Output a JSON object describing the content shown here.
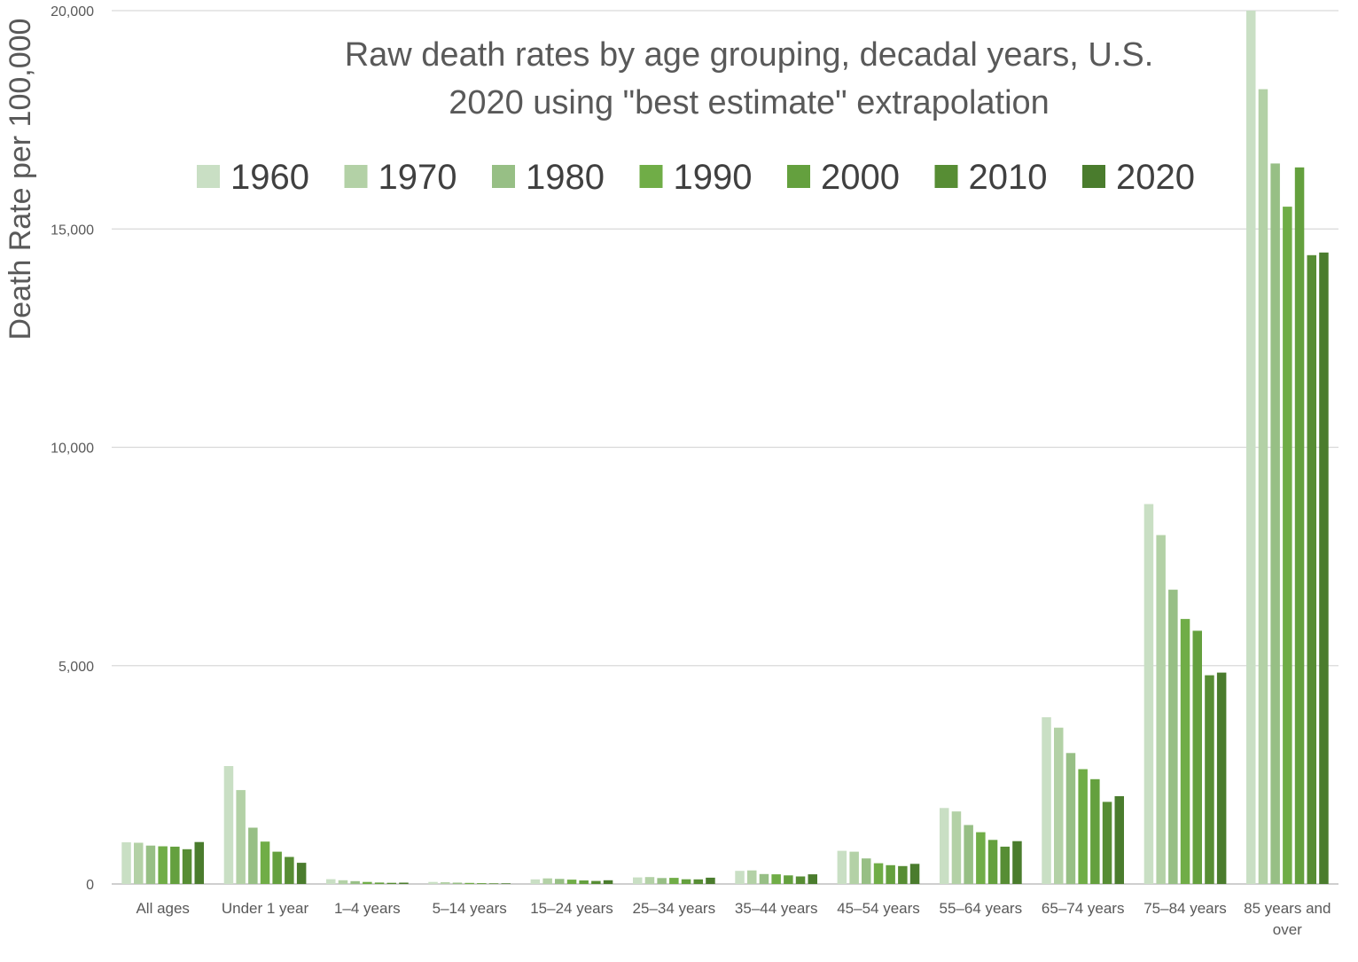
{
  "chart_data": {
    "type": "bar",
    "title_lines": [
      "Raw death rates by age grouping, decadal years, U.S.",
      "2020 using \"best estimate\" extrapolation"
    ],
    "ylabel": "Death Rate per 100,000",
    "xlabel": "",
    "ylim": [
      0,
      20000
    ],
    "yticks": [
      0,
      5000,
      10000,
      15000,
      20000
    ],
    "ytick_labels": [
      "0",
      "5,000",
      "10,000",
      "15,000",
      "20,000"
    ],
    "grid": true,
    "legend_position": "top",
    "categories": [
      "All ages",
      "Under 1 year",
      "1–4 years",
      "5–14 years",
      "15–24 years",
      "25–34 years",
      "35–44 years",
      "45–54 years",
      "55–64 years",
      "65–74 years",
      "75–84 years",
      "85 years and over"
    ],
    "category_label_lines": [
      [
        "All ages"
      ],
      [
        "Under 1 year"
      ],
      [
        "1–4 years"
      ],
      [
        "5–14 years"
      ],
      [
        "15–24 years"
      ],
      [
        "25–34 years"
      ],
      [
        "35–44 years"
      ],
      [
        "45–54 years"
      ],
      [
        "55–64 years"
      ],
      [
        "65–74 years"
      ],
      [
        "75–84 years"
      ],
      [
        "85 years and",
        "over"
      ]
    ],
    "series": [
      {
        "name": "1960",
        "color": "#c9dfc4",
        "values": [
          955,
          2700,
          110,
          47,
          106,
          150,
          300,
          760,
          1740,
          3820,
          8700,
          20000
        ]
      },
      {
        "name": "1970",
        "color": "#b3d1a6",
        "values": [
          945,
          2150,
          85,
          41,
          128,
          158,
          310,
          740,
          1660,
          3580,
          7990,
          18200
        ]
      },
      {
        "name": "1980",
        "color": "#97bf85",
        "values": [
          880,
          1290,
          65,
          31,
          115,
          136,
          228,
          585,
          1350,
          3000,
          6740,
          16500
        ]
      },
      {
        "name": "1990",
        "color": "#70ad47",
        "values": [
          862,
          970,
          47,
          25,
          100,
          140,
          222,
          475,
          1185,
          2630,
          6070,
          15510
        ]
      },
      {
        "name": "2000",
        "color": "#64a03e",
        "values": [
          855,
          740,
          33,
          19,
          82,
          108,
          196,
          430,
          1010,
          2400,
          5800,
          16410
        ]
      },
      {
        "name": "2010",
        "color": "#578d34",
        "values": [
          795,
          620,
          27,
          14,
          70,
          105,
          172,
          410,
          855,
          1880,
          4780,
          14400
        ]
      },
      {
        "name": "2020",
        "color": "#4a7c2d",
        "values": [
          960,
          485,
          30,
          14,
          85,
          145,
          222,
          460,
          980,
          2010,
          4840,
          14460
        ]
      }
    ]
  }
}
